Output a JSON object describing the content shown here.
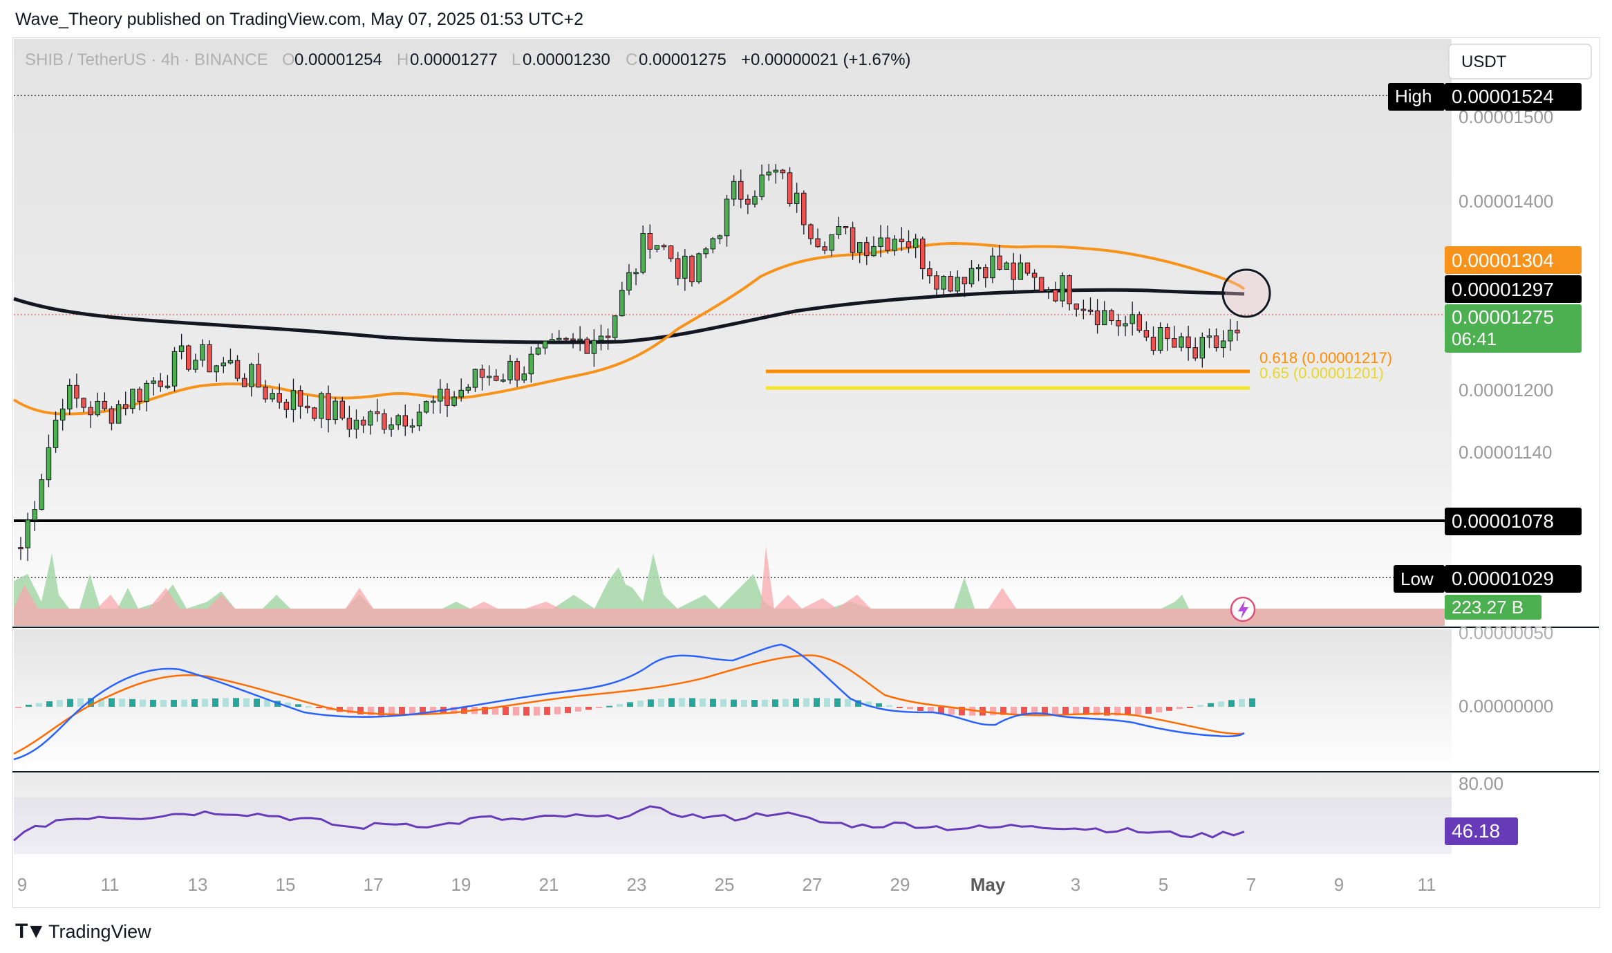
{
  "header": {
    "publisher_line": "Wave_Theory published on TradingView.com, May 07, 2025 01:53 UTC+2"
  },
  "footer": {
    "brand": "TradingView",
    "logo_icon": "tradingview-logo-icon"
  },
  "legend": {
    "symbol": "SHIB / TetherUS · 4h · BINANCE",
    "o_label": "O",
    "o": "0.00001254",
    "h_label": "H",
    "h": "0.00001277",
    "l_label": "L",
    "l": "0.00001230",
    "c_label": "C",
    "c": "0.00001275",
    "change": "+0.00000021 (+1.67%)"
  },
  "currency_button": "USDT",
  "price_axis": {
    "ticks": [
      "0.00001500",
      "0.00001400",
      "0.00001200",
      "0.00001140"
    ],
    "high": {
      "label": "High",
      "value": "0.00001524"
    },
    "low": {
      "label": "Low",
      "value": "0.00001029"
    },
    "tags": {
      "ma_orange": "0.00001304",
      "ma_black": "0.00001297",
      "last_price": "0.00001275",
      "countdown": "06:41",
      "support": "0.00001078",
      "volume": "223.27 B"
    }
  },
  "fib_levels": [
    {
      "label": "0.618 (0.00001217)",
      "value": 1.217e-05,
      "color": "#ff8c00"
    },
    {
      "label": "0.65 (0.00001201)",
      "value": 1.201e-05,
      "color": "#f5e52a"
    }
  ],
  "macd_axis": {
    "ticks": [
      "0.00000050",
      "0.00000000"
    ]
  },
  "rsi_axis": {
    "ticks": [
      "80.00"
    ],
    "value": "46.18"
  },
  "time_axis": {
    "labels": [
      "9",
      "11",
      "13",
      "15",
      "17",
      "19",
      "21",
      "23",
      "25",
      "27",
      "29",
      "May",
      "3",
      "5",
      "7",
      "9",
      "11"
    ]
  },
  "colors": {
    "up": "#26a69a",
    "down": "#ef5350",
    "ma_fast": "#f7931a",
    "ma_slow": "#131722",
    "rsi": "#673ab7",
    "macd": "#2962ff",
    "signal": "#ff6d00",
    "support": "#000000",
    "plot_bg": "#e7e7e7",
    "vol_up": "#a5d6a7",
    "vol_down": "#f7a8ad"
  },
  "chart_data": [
    {
      "type": "candlestick",
      "title": "SHIB / TetherUS · 4h · BINANCE",
      "ylim": [
        1.02e-05,
        1.54e-05
      ],
      "x": [
        "Apr 8",
        "Apr 9",
        "Apr 10",
        "Apr 11",
        "Apr 12",
        "Apr 13",
        "Apr 14",
        "Apr 15",
        "Apr 16",
        "Apr 17",
        "Apr 18",
        "Apr 19",
        "Apr 20",
        "Apr 21",
        "Apr 22",
        "Apr 23",
        "Apr 24",
        "Apr 25",
        "Apr 26",
        "Apr 27",
        "Apr 28",
        "Apr 29",
        "Apr 30",
        "May 1",
        "May 2",
        "May 3",
        "May 4",
        "May 5",
        "May 6",
        "May 7"
      ],
      "close": [
        1.05e-05,
        1.21e-05,
        1.19e-05,
        1.22e-05,
        1.25e-05,
        1.24e-05,
        1.21e-05,
        1.2e-05,
        1.18e-05,
        1.19e-05,
        1.2e-05,
        1.23e-05,
        1.24e-05,
        1.26e-05,
        1.28e-05,
        1.38e-05,
        1.33e-05,
        1.42e-05,
        1.44e-05,
        1.38e-05,
        1.37e-05,
        1.38e-05,
        1.33e-05,
        1.35e-05,
        1.33e-05,
        1.32e-05,
        1.29e-05,
        1.27e-05,
        1.25e-05,
        1.275e-05
      ],
      "ma_fast": [
        1.21e-05,
        1.19e-05,
        1.19e-05,
        1.2e-05,
        1.21e-05,
        1.22e-05,
        1.22e-05,
        1.21e-05,
        1.2e-05,
        1.2e-05,
        1.2e-05,
        1.21e-05,
        1.22e-05,
        1.23e-05,
        1.24e-05,
        1.26e-05,
        1.29e-05,
        1.31e-05,
        1.33e-05,
        1.34e-05,
        1.35e-05,
        1.35e-05,
        1.35e-05,
        1.34e-05,
        1.34e-05,
        1.33e-05,
        1.32e-05,
        1.31e-05,
        1.3e-05,
        1.304e-05
      ],
      "ma_slow": [
        1.28e-05,
        1.27e-05,
        1.27e-05,
        1.26e-05,
        1.26e-05,
        1.26e-05,
        1.26e-05,
        1.25e-05,
        1.25e-05,
        1.25e-05,
        1.25e-05,
        1.25e-05,
        1.25e-05,
        1.25e-05,
        1.25e-05,
        1.26e-05,
        1.26e-05,
        1.27e-05,
        1.28e-05,
        1.29e-05,
        1.29e-05,
        1.3e-05,
        1.3e-05,
        1.3e-05,
        1.3e-05,
        1.3e-05,
        1.3e-05,
        1.3e-05,
        1.3e-05,
        1.297e-05
      ],
      "horizontal_levels": [
        1.524e-05,
        1.078e-05,
        1.029e-05
      ]
    },
    {
      "type": "line",
      "title": "RSI",
      "ylim": [
        20,
        90
      ],
      "values": [
        40,
        58,
        62,
        61,
        65,
        66,
        63,
        58,
        50,
        55,
        52,
        60,
        58,
        62,
        60,
        69,
        62,
        60,
        66,
        56,
        52,
        54,
        50,
        50,
        53,
        50,
        48,
        45,
        42,
        46.18
      ]
    }
  ]
}
